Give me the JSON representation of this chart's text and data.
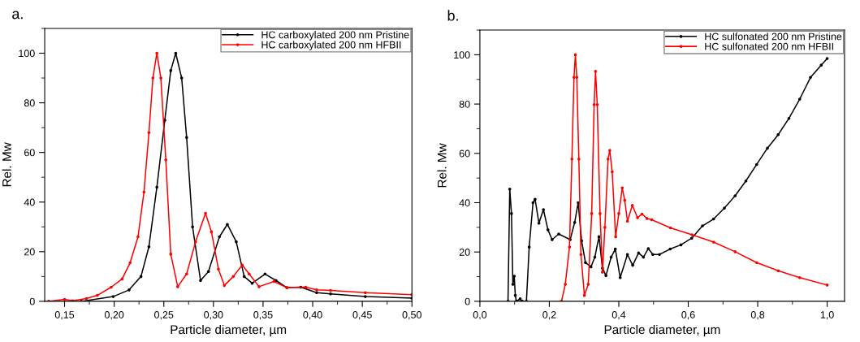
{
  "chart_data": [
    {
      "type": "line",
      "title": "a.",
      "xlabel": "Particle diameter, µm",
      "ylabel": "Rel. Mw",
      "xlim": [
        0.13,
        0.5
      ],
      "ylim": [
        0,
        110
      ],
      "xticks": [
        {
          "value": 0.15,
          "label": "0,15"
        },
        {
          "value": 0.2,
          "label": "0,20"
        },
        {
          "value": 0.25,
          "label": "0,25"
        },
        {
          "value": 0.3,
          "label": "0,30"
        },
        {
          "value": 0.35,
          "label": "0,35"
        },
        {
          "value": 0.4,
          "label": "0,40"
        },
        {
          "value": 0.45,
          "label": "0,45"
        },
        {
          "value": 0.5,
          "label": "0,50"
        }
      ],
      "yticks": [
        0,
        20,
        40,
        60,
        80,
        100
      ],
      "legend": "top right",
      "grid": false,
      "marker": "circle",
      "line_style": "solid",
      "series": [
        {
          "name": "HC carboxylated 200 nm Pristine",
          "color": "#000000",
          "x": [
            0.167,
            0.199,
            0.215,
            0.227,
            0.235,
            0.243,
            0.251,
            0.257,
            0.262,
            0.268,
            0.273,
            0.279,
            0.287,
            0.295,
            0.306,
            0.314,
            0.323,
            0.331,
            0.339,
            0.352,
            0.363,
            0.374,
            0.388,
            0.404,
            0.418,
            0.453,
            0.5
          ],
          "values": [
            0,
            1.9,
            4.6,
            10,
            22,
            46,
            73,
            93,
            100,
            90,
            66,
            30,
            8.4,
            12,
            26,
            31,
            24,
            10,
            7.3,
            11,
            8.4,
            5.5,
            5.7,
            3.5,
            3,
            1.9,
            1.3
          ]
        },
        {
          "name": "HC carboxylated 200 nm HFBII",
          "color": "#ff0000",
          "x": [
            0.134,
            0.15,
            0.158,
            0.172,
            0.183,
            0.197,
            0.208,
            0.216,
            0.224,
            0.23,
            0.235,
            0.239,
            0.243,
            0.247,
            0.252,
            0.257,
            0.264,
            0.273,
            0.282,
            0.292,
            0.298,
            0.305,
            0.311,
            0.32,
            0.329,
            0.336,
            0.346,
            0.361,
            0.374,
            0.393,
            0.404,
            0.418,
            0.453,
            0.5
          ],
          "values": [
            0,
            0.8,
            0.2,
            1.1,
            2.4,
            5.7,
            9,
            15.5,
            26,
            44,
            68,
            90,
            100,
            90,
            57,
            19,
            5.9,
            11,
            24,
            35.5,
            28,
            13,
            6.4,
            10,
            14.6,
            11,
            5.9,
            8,
            5.5,
            5.7,
            4.6,
            4.4,
            3.5,
            2.7
          ]
        }
      ]
    },
    {
      "type": "line",
      "title": "b.",
      "xlabel": "Particle diameter, µm",
      "ylabel": "Rel. Mw",
      "xlim": [
        0,
        1.05
      ],
      "ylim": [
        0,
        110
      ],
      "xticks": [
        {
          "value": 0,
          "label": "0,0"
        },
        {
          "value": 0.2,
          "label": "0,2"
        },
        {
          "value": 0.4,
          "label": "0,4"
        },
        {
          "value": 0.6,
          "label": "0,6"
        },
        {
          "value": 0.8,
          "label": "0,8"
        },
        {
          "value": 1.0,
          "label": "1,0"
        }
      ],
      "yticks": [
        0,
        20,
        40,
        60,
        80,
        100
      ],
      "legend": "top right",
      "grid": false,
      "marker": "circle",
      "line_style": "solid",
      "series": [
        {
          "name": "HC sulfonated 200 nm Pristine",
          "color": "#000000",
          "x": [
            0.081,
            0.086,
            0.091,
            0.095,
            0.099,
            0.102,
            0.105,
            0.116,
            0.122,
            0.134,
            0.142,
            0.153,
            0.159,
            0.17,
            0.183,
            0.196,
            0.208,
            0.227,
            0.26,
            0.273,
            0.283,
            0.293,
            0.304,
            0.32,
            0.331,
            0.343,
            0.353,
            0.363,
            0.378,
            0.39,
            0.404,
            0.425,
            0.44,
            0.457,
            0.471,
            0.485,
            0.498,
            0.517,
            0.548,
            0.579,
            0.61,
            0.641,
            0.673,
            0.704,
            0.735,
            0.766,
            0.797,
            0.828,
            0.859,
            0.89,
            0.921,
            0.952,
            0.983,
            1.0
          ],
          "values": [
            0,
            45.5,
            35.6,
            6.9,
            10.2,
            2.4,
            0,
            1,
            0,
            0,
            22,
            40,
            41.4,
            31.7,
            37.2,
            29,
            25,
            27.3,
            25,
            32,
            40,
            24.5,
            15.7,
            14,
            17.9,
            26.2,
            13.5,
            10.4,
            17.9,
            21.2,
            9.6,
            19,
            14.6,
            19.6,
            17.9,
            21.4,
            19,
            19,
            21.2,
            22.9,
            25.6,
            30.6,
            33.4,
            37.8,
            42.8,
            48.8,
            55.5,
            62.1,
            67.6,
            74.2,
            82,
            90.8,
            95.8,
            98.5
          ]
        },
        {
          "name": "HC sulfonated 200 nm HFBII",
          "color": "#ff0000",
          "x": [
            0.235,
            0.246,
            0.258,
            0.265,
            0.271,
            0.275,
            0.279,
            0.285,
            0.291,
            0.301,
            0.312,
            0.322,
            0.329,
            0.333,
            0.338,
            0.346,
            0.353,
            0.36,
            0.369,
            0.374,
            0.381,
            0.391,
            0.4,
            0.41,
            0.417,
            0.425,
            0.439,
            0.454,
            0.467,
            0.481,
            0.495,
            0.549,
            0.611,
            0.673,
            0.735,
            0.797,
            0.859,
            0.921,
            1.0
          ],
          "values": [
            0,
            6.9,
            22,
            57.7,
            90.8,
            100,
            90.8,
            57.7,
            19,
            2.4,
            6.9,
            35.6,
            79.8,
            93.3,
            79.8,
            35.6,
            11.8,
            30,
            57.7,
            61.2,
            52.5,
            26.2,
            35.6,
            46,
            41,
            32.5,
            38.9,
            33.9,
            35.4,
            33.6,
            33.1,
            29.8,
            27,
            24,
            20.1,
            15.7,
            12.4,
            9.6,
            6.6
          ]
        }
      ]
    }
  ]
}
